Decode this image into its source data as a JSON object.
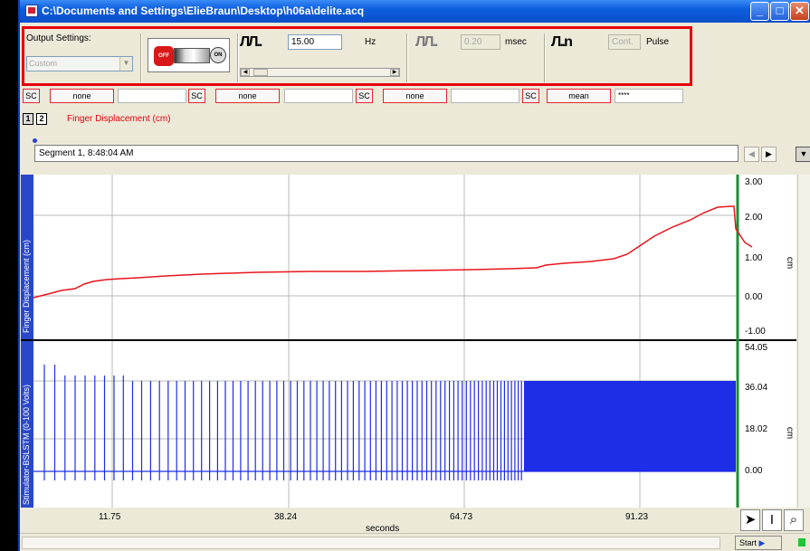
{
  "window": {
    "title": "C:\\Documents and Settings\\ElieBraun\\Desktop\\h06a\\delite.acq"
  },
  "output_settings": {
    "label": "Output Settings:",
    "preset": "Custom",
    "frequency_value": "15.00",
    "frequency_unit": "Hz",
    "width_value": "0.20",
    "width_unit": "msec",
    "pulse_value": "Cont.",
    "pulse_unit": "Pulse",
    "switch_off": "OFF",
    "switch_on": "ON"
  },
  "measurements": [
    {
      "sc": "SC",
      "function": "none",
      "value": ""
    },
    {
      "sc": "SC",
      "function": "none",
      "value": ""
    },
    {
      "sc": "SC",
      "function": "none",
      "value": ""
    },
    {
      "sc": "SC",
      "function": "mean",
      "value": "****"
    }
  ],
  "channels": {
    "buttons": [
      "1",
      "2"
    ],
    "selected_label": "Finger Displacement (cm)"
  },
  "segment": {
    "label": "Segment 1, 8:48:04 AM"
  },
  "plot": {
    "ch1_title": "Finger Displacement (cm)",
    "ch2_title": "Stimulator-BSLSTM (0-100 Volts)",
    "ch1_yticks": [
      "3.00",
      "2.00",
      "1.00",
      "0.00",
      "-1.00"
    ],
    "ch1_unit": "cm",
    "ch2_yticks": [
      "54.05",
      "36.04",
      "18.02",
      "0.00"
    ],
    "ch2_unit": "cm",
    "xticks": [
      "11.75",
      "38.24",
      "64.73",
      "91.23"
    ],
    "xunit": "seconds",
    "ch1_color": "#e8141c",
    "ch2_color": "#1e2de6",
    "divider_color": "#1e8c37"
  },
  "statusbar": {
    "start_label": "Start"
  },
  "tools": {
    "icons": [
      "arrow-pointer-icon",
      "i-beam-cursor-icon",
      "zoom-magnifier-icon"
    ]
  }
}
